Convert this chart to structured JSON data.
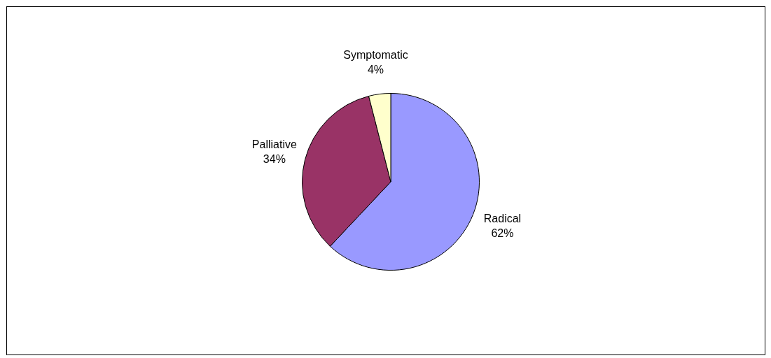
{
  "chart_data": {
    "type": "pie",
    "categories": [
      "Radical",
      "Palliative",
      "Symptomatic"
    ],
    "values": [
      62,
      34,
      4
    ],
    "colors": [
      "#9999ff",
      "#993366",
      "#ffffcc"
    ],
    "value_labels": [
      "62%",
      "34%",
      "4%"
    ],
    "legend": false
  }
}
